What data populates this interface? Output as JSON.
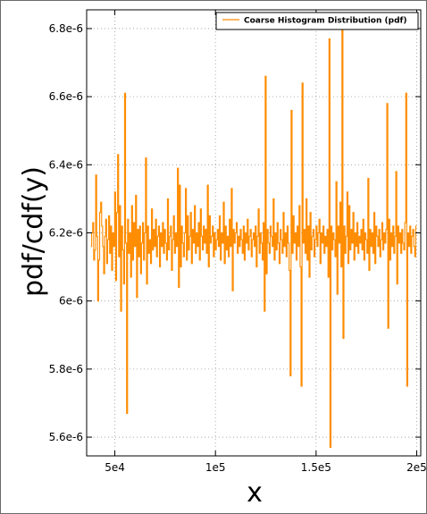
{
  "chart_data": {
    "type": "line",
    "title": "",
    "xlabel": "x",
    "ylabel": "pdf/cdf(y)",
    "xlim": [
      36000,
      202000
    ],
    "ylim": [
      5.545e-06,
      6.855e-06
    ],
    "x_ticks": [
      50000,
      100000,
      150000,
      200000
    ],
    "x_tick_labels": [
      "5e4",
      "1e5",
      "1.5e5",
      "2e5"
    ],
    "y_ticks": [
      5.6e-06,
      5.8e-06,
      6e-06,
      6.2e-06,
      6.4e-06,
      6.6e-06,
      6.8e-06
    ],
    "y_tick_labels": [
      "5.6e-6",
      "5.8e-6",
      "6e-6",
      "6.2e-6",
      "6.4e-6",
      "6.6e-6",
      "6.8e-6"
    ],
    "grid": true,
    "legend_position": "top-right",
    "colors": {
      "series": "#ff8c00",
      "grid": "#9a9a9a",
      "frame": "#000000"
    },
    "series": [
      {
        "name": "Coarse Histogram Distribution (pdf)",
        "style": "steps",
        "x_start": 38000,
        "x_end": 200000,
        "y": [
          6.16e-06,
          6.2e-06,
          6.23e-06,
          6.12e-06,
          6.15e-06,
          6.37e-06,
          6.19e-06,
          6e-06,
          6.12e-06,
          6.26e-06,
          6.29e-06,
          6.22e-06,
          6.16e-06,
          6.08e-06,
          6.19e-06,
          6.24e-06,
          6.11e-06,
          6.18e-06,
          6.25e-06,
          6.14e-06,
          6.22e-06,
          6.09e-06,
          6.2e-06,
          6.16e-06,
          6.32e-06,
          6.06e-06,
          6.26e-06,
          6.43e-06,
          6.13e-06,
          6.28e-06,
          5.97e-06,
          6.22e-06,
          6.15e-06,
          6.05e-06,
          6.61e-06,
          6.17e-06,
          5.67e-06,
          6.24e-06,
          6.14e-06,
          6.2e-06,
          6.07e-06,
          6.28e-06,
          6.12e-06,
          6.23e-06,
          6.16e-06,
          6.31e-06,
          6.01e-06,
          6.21e-06,
          6.13e-06,
          6.22e-06,
          6.08e-06,
          6.17e-06,
          6.23e-06,
          6.12e-06,
          6.2e-06,
          6.42e-06,
          6.05e-06,
          6.22e-06,
          6.14e-06,
          6.18e-06,
          6.11e-06,
          6.27e-06,
          6.15e-06,
          6.21e-06,
          6.16e-06,
          6.24e-06,
          6.13e-06,
          6.19e-06,
          6.22e-06,
          6.1e-06,
          6.2e-06,
          6.16e-06,
          6.23e-06,
          6.14e-06,
          6.21e-06,
          6.17e-06,
          6.12e-06,
          6.3e-06,
          6.15e-06,
          6.19e-06,
          6.22e-06,
          6.09e-06,
          6.18e-06,
          6.25e-06,
          6.14e-06,
          6.2e-06,
          6.16e-06,
          6.39e-06,
          6.04e-06,
          6.34e-06,
          6.1e-06,
          6.22e-06,
          6.17e-06,
          6.13e-06,
          6.2e-06,
          6.33e-06,
          6.12e-06,
          6.25e-06,
          6.15e-06,
          6.19e-06,
          6.26e-06,
          6.11e-06,
          6.21e-06,
          6.17e-06,
          6.28e-06,
          6.14e-06,
          6.2e-06,
          6.16e-06,
          6.23e-06,
          6.12e-06,
          6.27e-06,
          6.19e-06,
          6.15e-06,
          6.22e-06,
          6.17e-06,
          6.21e-06,
          6.14e-06,
          6.34e-06,
          6.1e-06,
          6.25e-06,
          6.17e-06,
          6.19e-06,
          6.22e-06,
          6.13e-06,
          6.2e-06,
          6.15e-06,
          6.18e-06,
          6.21e-06,
          6.16e-06,
          6.25e-06,
          6.12e-06,
          6.2e-06,
          6.17e-06,
          6.29e-06,
          6.11e-06,
          6.22e-06,
          6.15e-06,
          6.19e-06,
          6.13e-06,
          6.24e-06,
          6.16e-06,
          6.33e-06,
          6.03e-06,
          6.21e-06,
          6.17e-06,
          6.2e-06,
          6.23e-06,
          6.14e-06,
          6.19e-06,
          6.16e-06,
          6.21e-06,
          6.18e-06,
          6.14e-06,
          6.22e-06,
          6.12e-06,
          6.2e-06,
          6.17e-06,
          6.24e-06,
          6.15e-06,
          6.19e-06,
          6.21e-06,
          6.13e-06,
          6.18e-06,
          6.2e-06,
          6.16e-06,
          6.22e-06,
          6.1e-06,
          6.19e-06,
          6.27e-06,
          6.14e-06,
          6.2e-06,
          6.17e-06,
          6.12e-06,
          6.23e-06,
          5.97e-06,
          6.66e-06,
          6.08e-06,
          6.21e-06,
          6.17e-06,
          6.14e-06,
          6.22e-06,
          6.19e-06,
          6.16e-06,
          6.3e-06,
          6.12e-06,
          6.2e-06,
          6.15e-06,
          6.23e-06,
          6.17e-06,
          6.11e-06,
          6.21e-06,
          6.18e-06,
          6.14e-06,
          6.26e-06,
          6.16e-06,
          6.2e-06,
          6.13e-06,
          6.22e-06,
          6.17e-06,
          6.09e-06,
          5.78e-06,
          6.56e-06,
          6.14e-06,
          6.25e-06,
          6.17e-06,
          6.2e-06,
          6.12e-06,
          6.22e-06,
          6.16e-06,
          6.28e-06,
          6.1e-06,
          5.75e-06,
          6.64e-06,
          6.17e-06,
          6.21e-06,
          6.14e-06,
          6.3e-06,
          6.12e-06,
          6.22e-06,
          6.07e-06,
          6.26e-06,
          6.15e-06,
          6.19e-06,
          6.21e-06,
          6.13e-06,
          6.18e-06,
          6.22e-06,
          6.16e-06,
          6.2e-06,
          6.24e-06,
          6.11e-06,
          6.2e-06,
          6.17e-06,
          6.22e-06,
          6.14e-06,
          6.19e-06,
          6.16e-06,
          6.21e-06,
          6.07e-06,
          6.77e-06,
          5.57e-06,
          6.22e-06,
          6.15e-06,
          6.2e-06,
          6.18e-06,
          6.13e-06,
          6.35e-06,
          6.02e-06,
          6.22e-06,
          6.17e-06,
          6.29e-06,
          6.1e-06,
          6.8e-06,
          5.89e-06,
          6.22e-06,
          6.14e-06,
          6.19e-06,
          6.32e-06,
          6.11e-06,
          6.28e-06,
          6.15e-06,
          6.21e-06,
          6.17e-06,
          6.26e-06,
          6.12e-06,
          6.2e-06,
          6.16e-06,
          6.23e-06,
          6.14e-06,
          6.19e-06,
          6.17e-06,
          6.21e-06,
          6.15e-06,
          6.24e-06,
          6.12e-06,
          6.2e-06,
          6.18e-06,
          6.14e-06,
          6.36e-06,
          6.09e-06,
          6.21e-06,
          6.16e-06,
          6.2e-06,
          6.14e-06,
          6.26e-06,
          6.11e-06,
          6.22e-06,
          6.19e-06,
          6.16e-06,
          6.21e-06,
          6.13e-06,
          6.18e-06,
          6.23e-06,
          6.15e-06,
          6.2e-06,
          6.17e-06,
          6.21e-06,
          6.58e-06,
          5.92e-06,
          6.24e-06,
          6.12e-06,
          6.2e-06,
          6.16e-06,
          6.22e-06,
          6.14e-06,
          6.19e-06,
          6.38e-06,
          6.05e-06,
          6.22e-06,
          6.17e-06,
          6.2e-06,
          6.14e-06,
          6.21e-06,
          6.17e-06,
          6.15e-06,
          6.23e-06,
          6.61e-06,
          5.75e-06,
          6.2e-06,
          6.16e-06,
          6.22e-06,
          6.14e-06,
          6.19e-06,
          6.21e-06,
          6.16e-06,
          6.13e-06,
          6.22e-06
        ]
      }
    ]
  }
}
